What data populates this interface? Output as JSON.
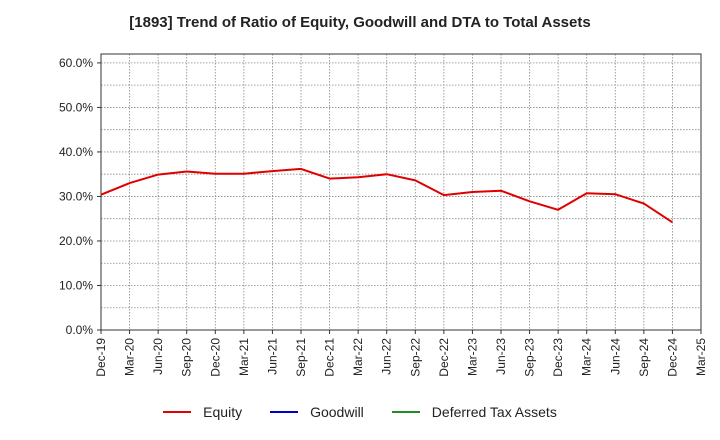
{
  "chart_data": {
    "type": "line",
    "title": "[1893]  Trend of Ratio of Equity, Goodwill and DTA to Total Assets",
    "xlabel": "",
    "ylabel": "",
    "ylim": [
      0,
      62
    ],
    "yticks": [
      0,
      10,
      20,
      30,
      40,
      50,
      60
    ],
    "ytick_labels": [
      "0.0%",
      "10.0%",
      "20.0%",
      "30.0%",
      "40.0%",
      "50.0%",
      "60.0%"
    ],
    "grid": true,
    "legend_position": "bottom",
    "categories": [
      "Dec-19",
      "Mar-20",
      "Jun-20",
      "Sep-20",
      "Dec-20",
      "Mar-21",
      "Jun-21",
      "Sep-21",
      "Dec-21",
      "Mar-22",
      "Jun-22",
      "Sep-22",
      "Dec-22",
      "Mar-23",
      "Jun-23",
      "Sep-23",
      "Dec-23",
      "Mar-24",
      "Jun-24",
      "Sep-24",
      "Dec-24",
      "Mar-25"
    ],
    "series": [
      {
        "name": "Equity",
        "color": "#e00000",
        "values": [
          30.4,
          33.0,
          34.9,
          35.6,
          35.1,
          35.1,
          35.7,
          36.2,
          34.0,
          34.3,
          35.0,
          33.6,
          30.3,
          31.0,
          31.3,
          28.9,
          27.0,
          30.7,
          30.5,
          28.4,
          24.2,
          null
        ]
      },
      {
        "name": "Goodwill",
        "color": "#0000cc",
        "values": [
          null,
          null,
          null,
          null,
          null,
          null,
          null,
          null,
          null,
          null,
          null,
          null,
          null,
          null,
          null,
          null,
          null,
          null,
          null,
          null,
          null,
          null
        ]
      },
      {
        "name": "Deferred Tax Assets",
        "color": "#228b22",
        "values": [
          null,
          null,
          null,
          null,
          null,
          null,
          null,
          null,
          null,
          null,
          null,
          null,
          null,
          null,
          null,
          null,
          null,
          null,
          null,
          null,
          null,
          null
        ]
      }
    ]
  }
}
